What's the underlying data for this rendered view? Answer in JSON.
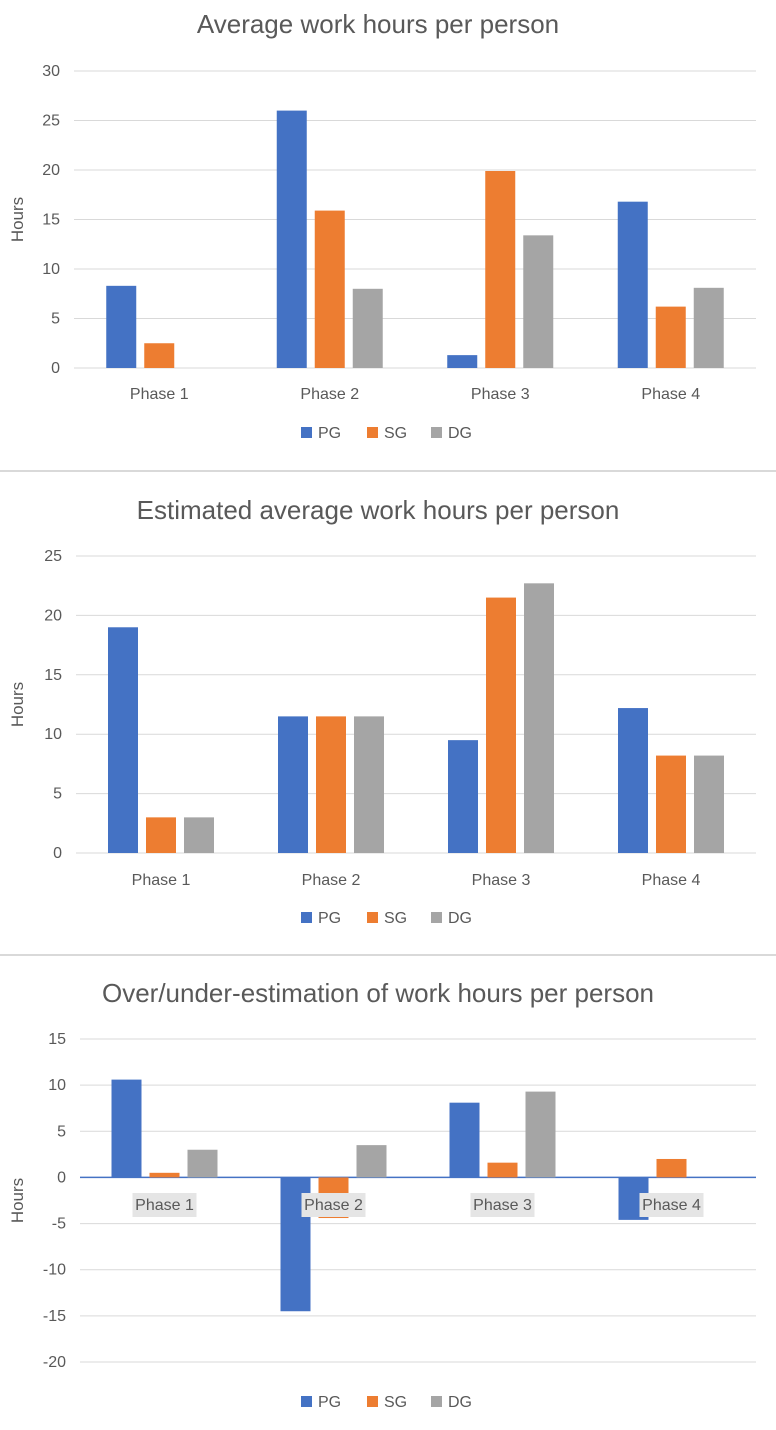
{
  "legend": {
    "pg": "PG",
    "sg": "SG",
    "dg": "DG"
  },
  "colors": {
    "PG": "#4472c4",
    "SG": "#ed7d31",
    "DG": "#a5a5a5",
    "grid": "#d9d9d9",
    "text": "#595959",
    "axis": "#4472c4"
  },
  "chart_data": [
    {
      "type": "bar",
      "title": "Average work hours per person",
      "ylabel": "Hours",
      "xlabel": "",
      "categories": [
        "Phase 1",
        "Phase 2",
        "Phase 3",
        "Phase 4"
      ],
      "ylim": [
        0,
        30
      ],
      "yticks": [
        0,
        5,
        10,
        15,
        20,
        25,
        30
      ],
      "grid": true,
      "legend_position": "bottom",
      "series": [
        {
          "name": "PG",
          "values": [
            8.3,
            26.0,
            1.3,
            16.8
          ]
        },
        {
          "name": "SG",
          "values": [
            2.5,
            15.9,
            19.9,
            6.2
          ]
        },
        {
          "name": "DG",
          "values": [
            0,
            8.0,
            13.4,
            8.1
          ]
        }
      ]
    },
    {
      "type": "bar",
      "title": "Estimated average work hours per person",
      "ylabel": "Hours",
      "xlabel": "",
      "categories": [
        "Phase 1",
        "Phase 2",
        "Phase 3",
        "Phase 4"
      ],
      "ylim": [
        0,
        25
      ],
      "yticks": [
        0,
        5,
        10,
        15,
        20,
        25
      ],
      "grid": true,
      "legend_position": "bottom",
      "series": [
        {
          "name": "PG",
          "values": [
            19.0,
            11.5,
            9.5,
            12.2
          ]
        },
        {
          "name": "SG",
          "values": [
            3.0,
            11.5,
            21.5,
            8.2
          ]
        },
        {
          "name": "DG",
          "values": [
            3.0,
            11.5,
            22.7,
            8.2
          ]
        }
      ]
    },
    {
      "type": "bar",
      "title": "Over/under-estimation of work hours per person",
      "ylabel": "Hours",
      "xlabel": "",
      "categories": [
        "Phase 1",
        "Phase 2",
        "Phase 3",
        "Phase 4"
      ],
      "ylim": [
        -20,
        15
      ],
      "yticks": [
        -20,
        -15,
        -10,
        -5,
        0,
        5,
        10,
        15
      ],
      "grid": true,
      "legend_position": "bottom",
      "series": [
        {
          "name": "PG",
          "values": [
            10.6,
            -14.5,
            8.1,
            -4.6
          ]
        },
        {
          "name": "SG",
          "values": [
            0.5,
            -4.4,
            1.6,
            2.0
          ]
        },
        {
          "name": "DG",
          "values": [
            3.0,
            3.5,
            9.3,
            0
          ]
        }
      ]
    }
  ]
}
